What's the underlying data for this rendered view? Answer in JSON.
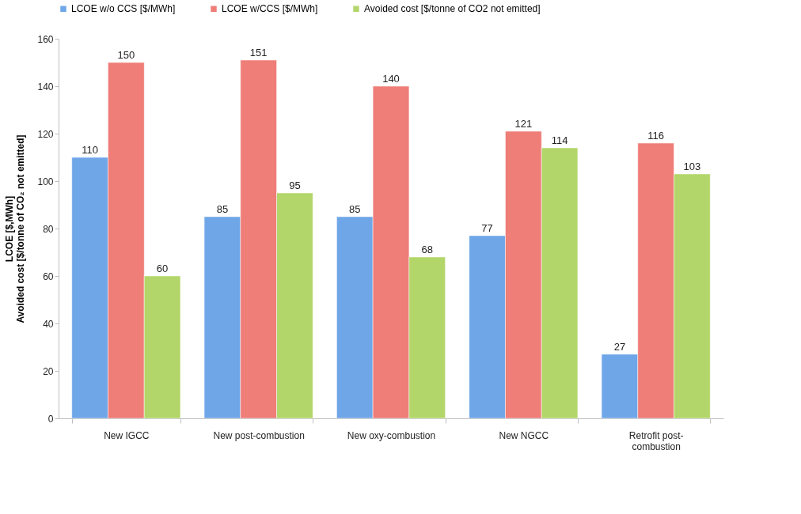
{
  "chart_data": {
    "type": "bar",
    "ylabel": "LCOE [$,MWh]\nAvoided cost [$/tonne of CO₂ not emitted]",
    "categories": [
      "New IGCC",
      "New post-combustion",
      "New oxy-combustion",
      "New NGCC",
      "Retrofit post-combustion"
    ],
    "series": [
      {
        "name": "LCOE w/o CCS [$/MWh]",
        "color": "#6fa6e8",
        "values": [
          110,
          85,
          85,
          77,
          27
        ]
      },
      {
        "name": "LCOE w/CCS [$/MWh]",
        "color": "#ef7d78",
        "values": [
          150,
          151,
          140,
          121,
          116
        ]
      },
      {
        "name": "Avoided cost [$/tonne of CO2 not emitted]",
        "color": "#b3d66a",
        "values": [
          60,
          95,
          68,
          114,
          103
        ]
      }
    ],
    "ylim": [
      0,
      160
    ],
    "yticks": [
      0,
      20,
      40,
      60,
      80,
      100,
      120,
      140,
      160
    ],
    "data_labels": true,
    "legend": "top"
  }
}
